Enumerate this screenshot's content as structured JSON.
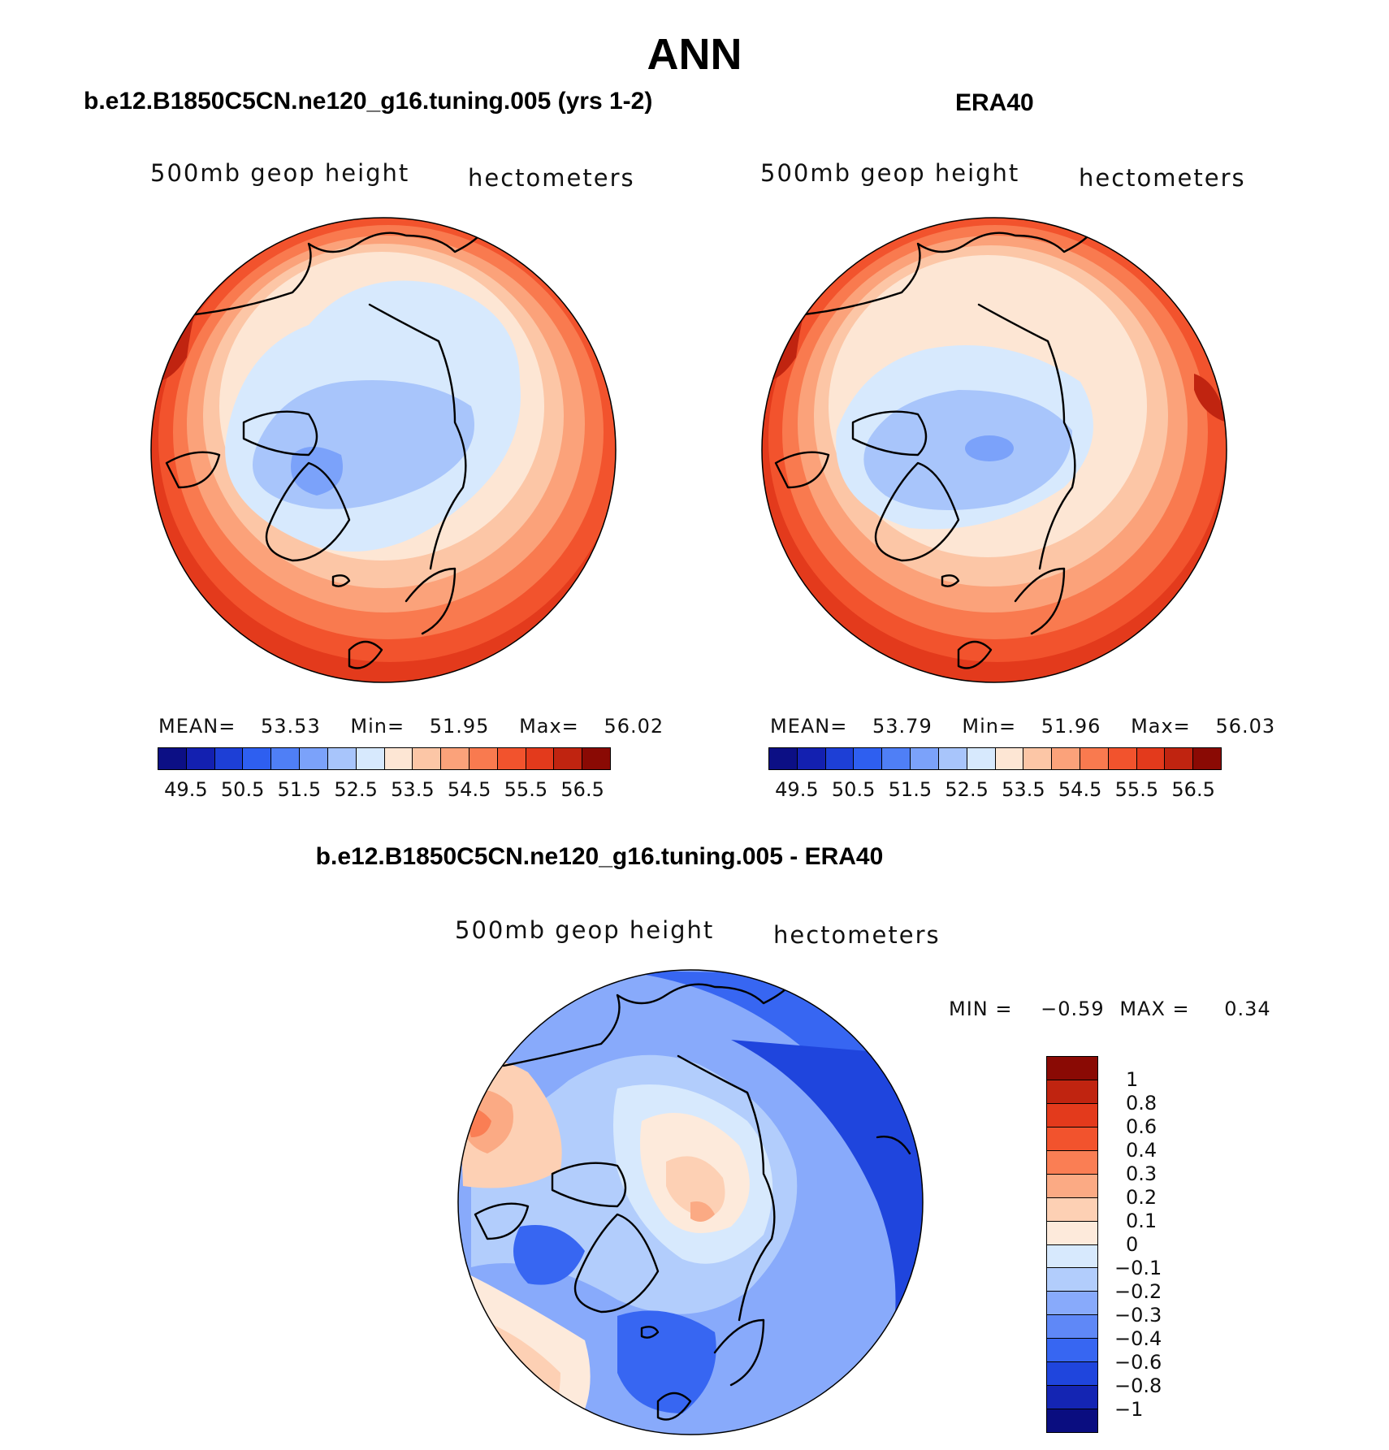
{
  "main_title": "ANN",
  "colors": {
    "diverging": [
      "#0c0f85",
      "#1320b0",
      "#1d3fd6",
      "#2e5ff0",
      "#4f7ff6",
      "#7ba2fa",
      "#a8c5fb",
      "#d7e9fd",
      "#fde6d4",
      "#fcc6a6",
      "#fba27a",
      "#f97a4f",
      "#f2532d",
      "#e33a1c",
      "#c02410",
      "#8a0a04"
    ],
    "difference": [
      "#8a0a04",
      "#c02410",
      "#e33a1c",
      "#f2532d",
      "#fa7e54",
      "#fbaa84",
      "#fdd0b4",
      "#fdeadb",
      "#d7e9fd",
      "#b2cdfc",
      "#88aafb",
      "#5f88f7",
      "#3766f2",
      "#1f45dd",
      "#1425b3",
      "#0a0d80"
    ]
  },
  "panels": [
    {
      "title": "b.e12.B1850C5CN.ne120_g16.tuning.005 (yrs 1-2)",
      "left_label": "500mb geop height",
      "right_label": "hectometers",
      "stats": {
        "mean_label": "MEAN=",
        "mean": "53.53",
        "min_label": "Min=",
        "min": "51.95",
        "max_label": "Max=",
        "max": "56.02"
      },
      "colorbar_ticks": [
        "49.5",
        "50.5",
        "51.5",
        "52.5",
        "53.5",
        "54.5",
        "55.5",
        "56.5"
      ]
    },
    {
      "title": "ERA40",
      "left_label": "500mb geop height",
      "right_label": "hectometers",
      "stats": {
        "mean_label": "MEAN=",
        "mean": "53.79",
        "min_label": "Min=",
        "min": "51.96",
        "max_label": "Max=",
        "max": "56.03"
      },
      "colorbar_ticks": [
        "49.5",
        "50.5",
        "51.5",
        "52.5",
        "53.5",
        "54.5",
        "55.5",
        "56.5"
      ]
    },
    {
      "title": "b.e12.B1850C5CN.ne120_g16.tuning.005 - ERA40",
      "left_label": "500mb geop height",
      "right_label": "hectometers",
      "stats": {
        "min_label": "MIN =",
        "min": "−0.59",
        "max_label": "MAX =",
        "max": "0.34"
      },
      "colorbar_ticks": [
        "1",
        "0.8",
        "0.6",
        "0.4",
        "0.3",
        "0.2",
        "0.1",
        "0",
        "−0.1",
        "−0.2",
        "−0.3",
        "−0.4",
        "−0.6",
        "−0.8",
        "−1"
      ]
    }
  ]
}
